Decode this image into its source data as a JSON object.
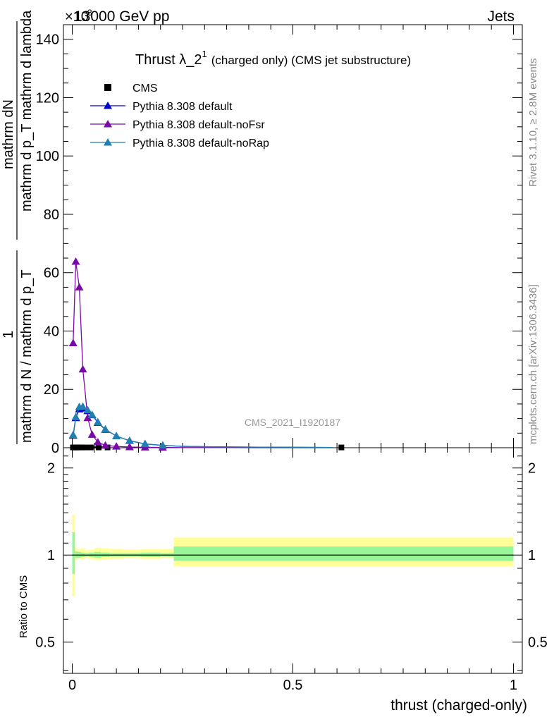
{
  "header": {
    "energy_label": "13000 GeV pp",
    "scale_label": "×10",
    "scale_exp": "-3",
    "process_label": "Jets"
  },
  "side_labels": {
    "rivet": "Rivet 3.1.10, ≥ 2.8M events",
    "mcplots": "mcplots.cern.ch [arXiv:1306.3436]"
  },
  "watermark": "CMS_2021_I1920187",
  "colors": {
    "cms": "#000000",
    "default": "#0000cc",
    "noFsr": "#7a0aa8",
    "noRap": "#1f7fb0",
    "band_inner": "#98f598",
    "band_outer": "#ffff99"
  },
  "chart_data": [
    {
      "type": "line",
      "title": "Thrust λ_2¹ (charged only) (CMS jet substructure)",
      "title_main": "Thrust λ_2",
      "title_sup": "1",
      "title_rest": "(charged only) (CMS jet substructure)",
      "ylabel_num": "mathrm dN",
      "ylabel_den": "mathrm d p_T mathrm d lambda",
      "ylabel_pre": "1",
      "ylabel_pre_den": "mathrm d N / mathrm d p_T",
      "ylim": [
        0,
        145
      ],
      "xlim": [
        -0.02,
        1.02
      ],
      "yticks": [
        0,
        20,
        40,
        60,
        80,
        100,
        120,
        140
      ],
      "y_unit": "×10^-3",
      "legend_position": "top-left",
      "series": [
        {
          "name": "CMS",
          "marker": "square",
          "x": [
            0.0015,
            0.0045,
            0.0075,
            0.0105,
            0.015,
            0.021,
            0.03,
            0.042,
            0.06,
            0.08,
            0.61
          ],
          "y": [
            0.1,
            0.1,
            0.1,
            0.1,
            0.1,
            0.1,
            0.1,
            0.1,
            0.1,
            0.1,
            0.1
          ]
        },
        {
          "name": "Pythia 8.308 default",
          "marker": "triangle",
          "x": [
            0.002,
            0.008,
            0.016,
            0.024,
            0.035,
            0.045,
            0.058,
            0.075,
            0.1,
            0.13,
            0.165,
            0.205,
            0.245,
            0.3,
            0.36,
            0.42,
            0.48,
            0.55,
            0.59
          ],
          "y": [
            4.2,
            10.2,
            13.2,
            13.5,
            12.6,
            11.2,
            8.6,
            6.2,
            4.0,
            2.4,
            1.3,
            0.8,
            0.5,
            0.35,
            0.28,
            0.22,
            0.18,
            0.12,
            0.08
          ]
        },
        {
          "name": "Pythia 8.308 default-noFsr",
          "marker": "triangle",
          "x": [
            0.002,
            0.008,
            0.016,
            0.024,
            0.035,
            0.045,
            0.058,
            0.075,
            0.1,
            0.13,
            0.165,
            0.205,
            0.245,
            0.3,
            0.36,
            0.42,
            0.48,
            0.55,
            0.59
          ],
          "y": [
            35.9,
            63.8,
            55.0,
            26.9,
            10.2,
            4.5,
            1.9,
            0.8,
            0.45,
            0.25,
            0.15,
            0.1,
            0.05,
            0.04,
            0.03,
            0.02,
            0.02,
            0.01,
            0.01
          ]
        },
        {
          "name": "Pythia 8.308 default-noRap",
          "marker": "triangle",
          "x": [
            0.002,
            0.008,
            0.016,
            0.024,
            0.035,
            0.045,
            0.058,
            0.075,
            0.1,
            0.13,
            0.165,
            0.205,
            0.245,
            0.3,
            0.36,
            0.42,
            0.48,
            0.55,
            0.59
          ],
          "y": [
            4.4,
            10.5,
            14.0,
            14.1,
            12.9,
            11.3,
            8.8,
            6.3,
            4.0,
            2.4,
            1.3,
            0.8,
            0.5,
            0.35,
            0.28,
            0.22,
            0.18,
            0.12,
            0.08
          ]
        }
      ]
    },
    {
      "type": "area",
      "xlabel": "thrust (charged-only)",
      "ylabel": "Ratio to CMS",
      "xlim": [
        -0.02,
        1.02
      ],
      "ylim": [
        0.39,
        2.35
      ],
      "log_y": true,
      "yticks": [
        0.5,
        1,
        2
      ],
      "ytick_labels": [
        "0.5",
        "1",
        "2"
      ],
      "xticks": [
        0,
        0.5,
        1
      ],
      "xtick_labels": [
        "0",
        "0.5",
        "1"
      ],
      "bins": [
        0,
        0.006,
        0.012,
        0.02,
        0.028,
        0.038,
        0.05,
        0.065,
        0.085,
        0.115,
        0.155,
        0.2,
        0.23,
        1.0
      ],
      "band_outer": {
        "lo": [
          0.72,
          0.96,
          0.97,
          0.965,
          0.975,
          0.97,
          0.96,
          0.965,
          0.97,
          0.975,
          0.97,
          0.975,
          0.915
        ],
        "hi": [
          1.38,
          1.06,
          1.05,
          1.055,
          1.04,
          1.045,
          1.06,
          1.055,
          1.05,
          1.045,
          1.05,
          1.05,
          1.15
        ]
      },
      "band_inner": {
        "lo": [
          0.86,
          0.98,
          0.98,
          0.985,
          0.99,
          0.985,
          0.98,
          0.985,
          0.99,
          0.99,
          0.985,
          0.99,
          0.955
        ],
        "hi": [
          1.2,
          1.03,
          1.025,
          1.02,
          1.015,
          1.02,
          1.025,
          1.02,
          1.015,
          1.015,
          1.02,
          1.015,
          1.07
        ]
      },
      "reference": 1
    }
  ]
}
